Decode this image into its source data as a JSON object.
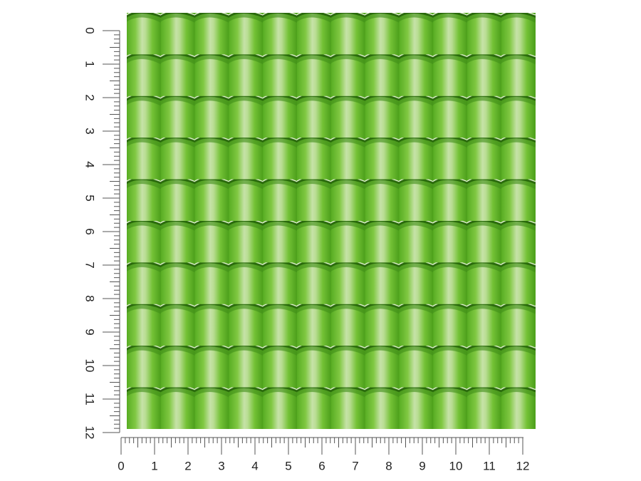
{
  "ruler": {
    "vertical_labels": [
      0,
      1,
      2,
      3,
      4,
      5,
      6,
      7,
      8,
      9,
      10,
      11,
      12
    ],
    "horizontal_labels": [
      0,
      1,
      2,
      3,
      4,
      5,
      6,
      7,
      8,
      9,
      10,
      11,
      12
    ]
  }
}
